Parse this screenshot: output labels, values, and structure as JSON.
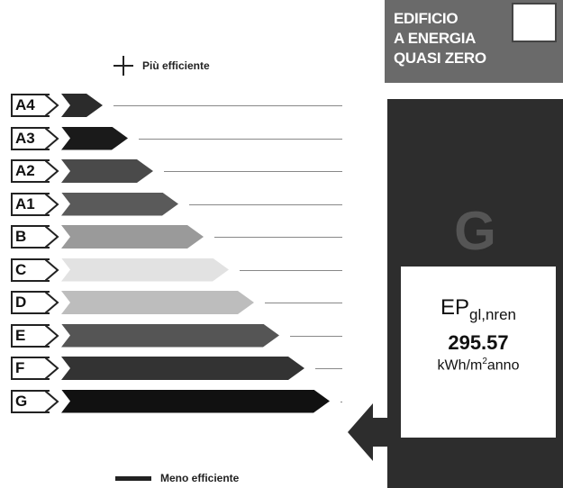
{
  "legend": {
    "top_label": "Più efficiente",
    "bottom_label": "Meno efficiente"
  },
  "scale": [
    {
      "class": "A4",
      "color": "#2b2b2b"
    },
    {
      "class": "A3",
      "color": "#1a1a1a"
    },
    {
      "class": "A2",
      "color": "#4a4a4a"
    },
    {
      "class": "A1",
      "color": "#5a5a5a"
    },
    {
      "class": "B",
      "color": "#9a9a9a"
    },
    {
      "class": "C",
      "color": "#e2e2e2"
    },
    {
      "class": "D",
      "color": "#bdbdbd"
    },
    {
      "class": "E",
      "color": "#555555"
    },
    {
      "class": "F",
      "color": "#333333"
    },
    {
      "class": "G",
      "color": "#111111"
    }
  ],
  "nzeb": {
    "line1": "EDIFICIO",
    "line2": "A ENERGIA",
    "line3": "QUASI ZERO"
  },
  "rating": {
    "class": "G",
    "ep_label": "EP",
    "ep_sub": "gl,nren",
    "value": "295.57",
    "unit_pre": "kWh/m",
    "unit_sup": "2",
    "unit_post": "anno"
  },
  "colors": {
    "panel_dark": "#2d2d2d",
    "panel_grey": "#6a6a6a"
  }
}
